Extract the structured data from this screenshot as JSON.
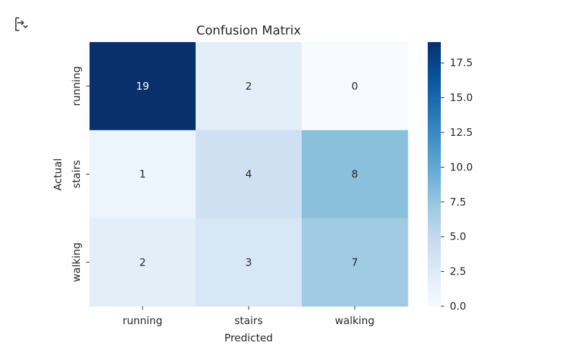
{
  "cell_output_icon": "output-toggle-icon",
  "chart_data": {
    "type": "heatmap",
    "title": "Confusion Matrix",
    "xlabel": "Predicted",
    "ylabel": "Actual",
    "x_categories": [
      "running",
      "stairs",
      "walking"
    ],
    "y_categories": [
      "running",
      "stairs",
      "walking"
    ],
    "values": [
      [
        19,
        2,
        0
      ],
      [
        1,
        4,
        8
      ],
      [
        2,
        3,
        7
      ]
    ],
    "colormap": "Blues",
    "vmin": 0,
    "vmax": 19,
    "colorbar_ticks": [
      0.0,
      2.5,
      5.0,
      7.5,
      10.0,
      12.5,
      15.0,
      17.5
    ],
    "colorbar_tick_labels": [
      "0.0",
      "2.5",
      "5.0",
      "7.5",
      "10.0",
      "12.5",
      "15.0",
      "17.5"
    ]
  }
}
